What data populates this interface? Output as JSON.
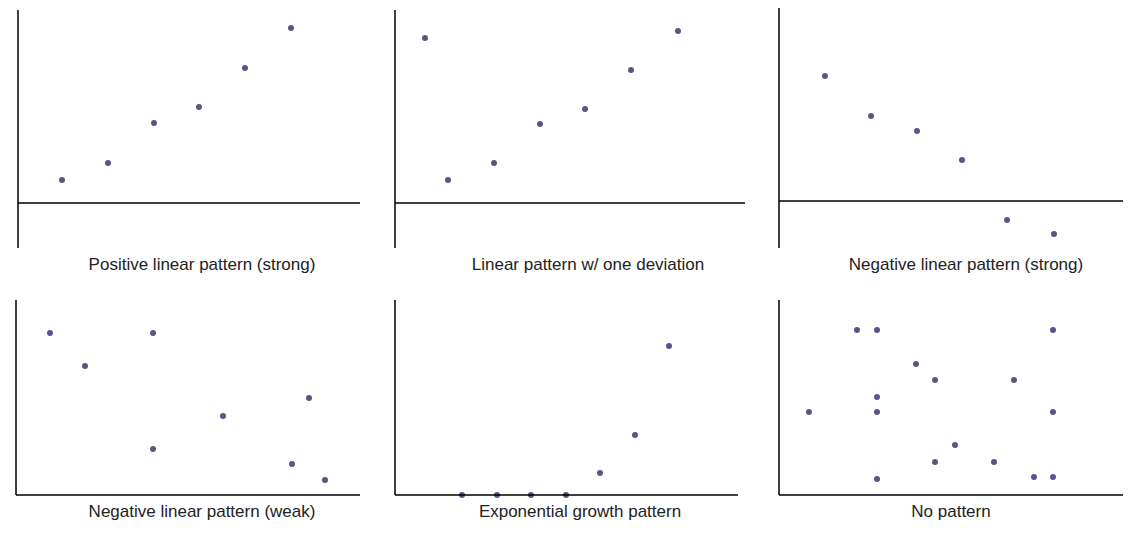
{
  "chart_data": [
    {
      "type": "scatter",
      "title": "Positive linear pattern (strong)",
      "color": "#5b5486",
      "marker": "circle",
      "grid": false,
      "tick_labels": false,
      "xlim": [
        0,
        34.2
      ],
      "ylim": [
        -4.5,
        19.3
      ],
      "x": [
        4.4,
        9.0,
        13.6,
        18.1,
        22.7,
        27.3
      ],
      "values": [
        2.3,
        4.0,
        8.0,
        9.6,
        13.5,
        17.5
      ]
    },
    {
      "type": "scatter",
      "title": "Linear pattern w/ one deviation",
      "color": "#5b5486",
      "marker": "circle",
      "grid": false,
      "tick_labels": false,
      "xlim": [
        0,
        35
      ],
      "ylim": [
        -4.5,
        19.3
      ],
      "x": [
        3.0,
        5.3,
        9.9,
        14.5,
        19.0,
        23.6,
        28.3
      ],
      "values": [
        16.5,
        2.3,
        4.0,
        7.9,
        9.4,
        13.3,
        17.2
      ]
    },
    {
      "type": "scatter",
      "title": "Negative linear pattern (strong)",
      "color": "#5b5486",
      "marker": "circle",
      "grid": false,
      "tick_labels": false,
      "xlim": [
        0,
        34.4
      ],
      "ylim": [
        -4.7,
        19.3
      ],
      "x": [
        4.6,
        9.2,
        13.8,
        18.3,
        22.8,
        27.5
      ],
      "values": [
        12.5,
        8.5,
        7.0,
        4.1,
        -1.9,
        -3.3
      ]
    },
    {
      "type": "scatter",
      "title": "Negative linear pattern (weak)",
      "color": "#5b5486",
      "marker": "circle",
      "grid": false,
      "tick_labels": false,
      "xlim": [
        0,
        34.4
      ],
      "ylim": [
        0,
        19.5
      ],
      "x": [
        3.4,
        6.9,
        13.7,
        13.7,
        20.7,
        29.3,
        27.6,
        30.9
      ],
      "values": [
        16.2,
        12.9,
        16.2,
        4.6,
        7.9,
        9.7,
        3.1,
        1.5
      ]
    },
    {
      "type": "scatter",
      "title": "Exponential growth pattern",
      "color": "#5b5486",
      "marker": "circle",
      "grid": false,
      "tick_labels": false,
      "xlim": [
        0,
        34.3
      ],
      "ylim": [
        0,
        19.5
      ],
      "x": [
        6.7,
        10.2,
        13.6,
        17.1,
        20.5,
        24.0,
        27.4
      ],
      "values": [
        0,
        0,
        0,
        0,
        2.2,
        6.0,
        14.9
      ]
    },
    {
      "type": "scatter",
      "title": "No pattern",
      "color": "#5b5486",
      "marker": "circle",
      "grid": false,
      "tick_labels": false,
      "xlim": [
        0,
        34.4
      ],
      "ylim": [
        0,
        19.5
      ],
      "x": [
        3.0,
        7.8,
        9.8,
        9.8,
        9.8,
        9.8,
        13.7,
        15.6,
        15.6,
        17.6,
        21.5,
        23.5,
        25.5,
        27.4,
        27.4,
        27.4
      ],
      "values": [
        8.3,
        16.5,
        16.5,
        9.8,
        8.3,
        1.6,
        13.1,
        11.5,
        3.3,
        5.0,
        3.3,
        11.5,
        1.8,
        16.5,
        8.3,
        1.8
      ]
    }
  ]
}
